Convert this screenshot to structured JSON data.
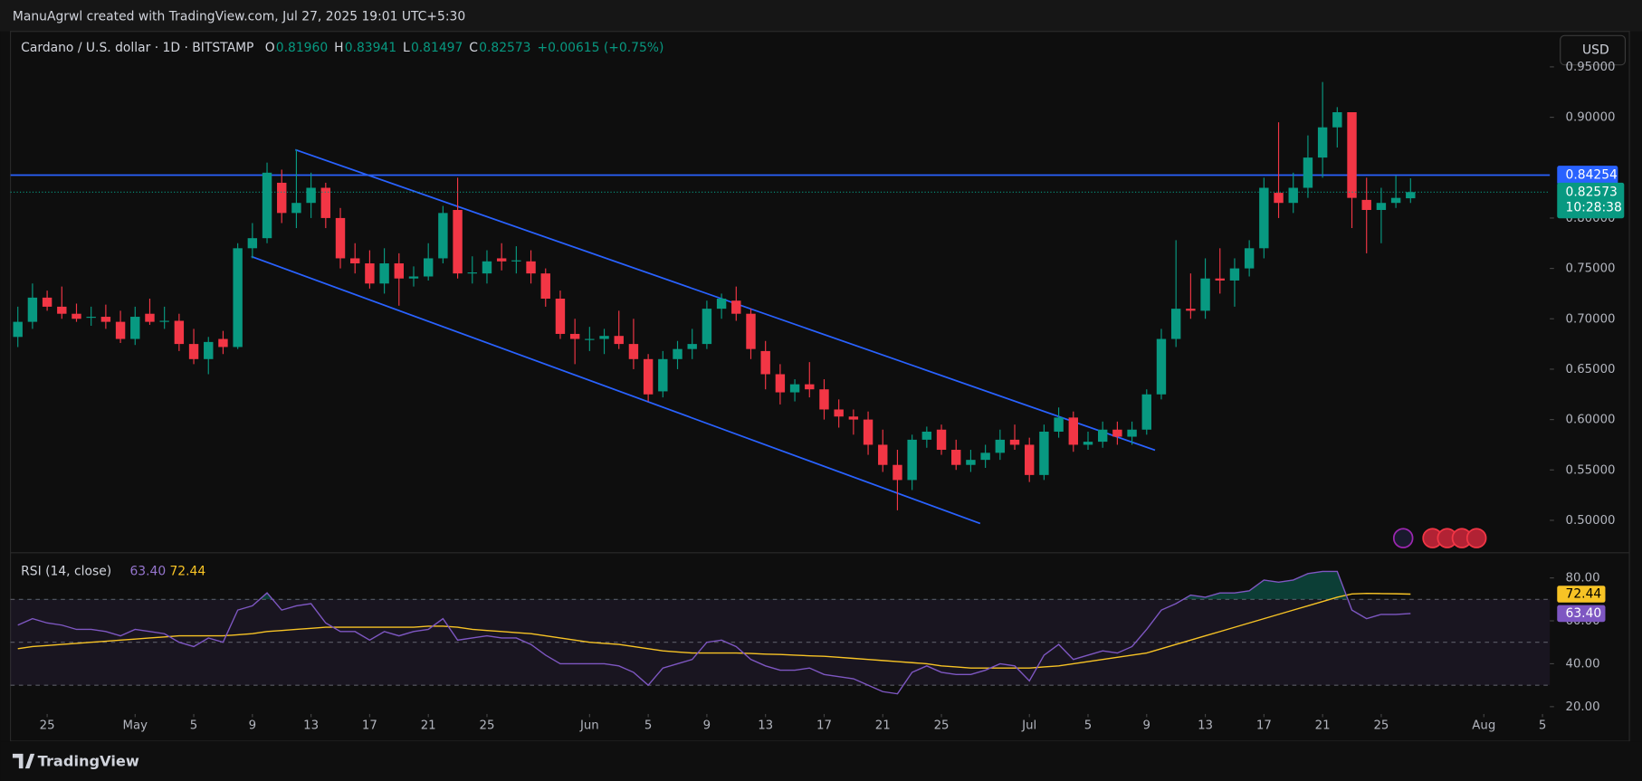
{
  "header": {
    "credit": "ManuAgrwl created with TradingView.com, Jul 27, 2025 19:01 UTC+5:30",
    "currency": "USD",
    "brand": "TradingView"
  },
  "chart_data": [
    {
      "type": "candlestick",
      "title": "Cardano / U.S. dollar · 1D · BITSTAMP",
      "legend": [
        {
          "label": "O",
          "value": "0.81960"
        },
        {
          "label": "H",
          "value": "0.83941"
        },
        {
          "label": "L",
          "value": "0.81497"
        },
        {
          "label": "C",
          "value": "0.82573"
        }
      ],
      "change": "+0.00615 (+0.75%)",
      "up_color": "#089981",
      "down_color": "#f23645",
      "xlim": [
        -0.5,
        104.5
      ],
      "xticks": [
        {
          "value": 2,
          "label": "25"
        },
        {
          "value": 8,
          "label": "May"
        },
        {
          "value": 12,
          "label": "5"
        },
        {
          "value": 16,
          "label": "9"
        },
        {
          "value": 20,
          "label": "13"
        },
        {
          "value": 24,
          "label": "17"
        },
        {
          "value": 28,
          "label": "21"
        },
        {
          "value": 32,
          "label": "25"
        },
        {
          "value": 39,
          "label": "Jun"
        },
        {
          "value": 43,
          "label": "5"
        },
        {
          "value": 47,
          "label": "9"
        },
        {
          "value": 51,
          "label": "13"
        },
        {
          "value": 55,
          "label": "17"
        },
        {
          "value": 59,
          "label": "21"
        },
        {
          "value": 63,
          "label": "25"
        },
        {
          "value": 69,
          "label": "Jul"
        },
        {
          "value": 73,
          "label": "5"
        },
        {
          "value": 77,
          "label": "9"
        },
        {
          "value": 81,
          "label": "13"
        },
        {
          "value": 85,
          "label": "17"
        },
        {
          "value": 89,
          "label": "21"
        },
        {
          "value": 93,
          "label": "25"
        },
        {
          "value": 100,
          "label": "Aug"
        },
        {
          "value": 104,
          "label": "5"
        }
      ],
      "ylim": [
        0.4678,
        0.9852
      ],
      "yticks": [
        {
          "value": 0.95,
          "label": "0.95000"
        },
        {
          "value": 0.9,
          "label": "0.90000"
        },
        {
          "value": 0.8,
          "label": "0.80000"
        },
        {
          "value": 0.75,
          "label": "0.75000"
        },
        {
          "value": 0.7,
          "label": "0.70000"
        },
        {
          "value": 0.65,
          "label": "0.65000"
        },
        {
          "value": 0.6,
          "label": "0.60000"
        },
        {
          "value": 0.55,
          "label": "0.55000"
        },
        {
          "value": 0.5,
          "label": "0.50000"
        }
      ],
      "price_line": {
        "value": 0.84254,
        "label": "0.84254",
        "color": "#2962ff"
      },
      "last_price": {
        "label": "0.82573",
        "countdown": "10:28:38"
      },
      "ohlc": [
        [
          0.682,
          0.712,
          0.672,
          0.697
        ],
        [
          0.697,
          0.735,
          0.69,
          0.721
        ],
        [
          0.721,
          0.728,
          0.708,
          0.712
        ],
        [
          0.712,
          0.732,
          0.7,
          0.705
        ],
        [
          0.705,
          0.715,
          0.697,
          0.7
        ],
        [
          0.701,
          0.712,
          0.693,
          0.702
        ],
        [
          0.702,
          0.714,
          0.69,
          0.697
        ],
        [
          0.697,
          0.708,
          0.676,
          0.68
        ],
        [
          0.68,
          0.712,
          0.674,
          0.702
        ],
        [
          0.705,
          0.72,
          0.694,
          0.697
        ],
        [
          0.697,
          0.712,
          0.69,
          0.698
        ],
        [
          0.698,
          0.705,
          0.668,
          0.675
        ],
        [
          0.675,
          0.69,
          0.655,
          0.66
        ],
        [
          0.66,
          0.682,
          0.645,
          0.677
        ],
        [
          0.68,
          0.688,
          0.665,
          0.672
        ],
        [
          0.672,
          0.775,
          0.67,
          0.77
        ],
        [
          0.77,
          0.795,
          0.76,
          0.78
        ],
        [
          0.78,
          0.855,
          0.775,
          0.845
        ],
        [
          0.835,
          0.848,
          0.795,
          0.805
        ],
        [
          0.805,
          0.868,
          0.79,
          0.815
        ],
        [
          0.815,
          0.845,
          0.8,
          0.83
        ],
        [
          0.83,
          0.835,
          0.79,
          0.8
        ],
        [
          0.8,
          0.81,
          0.75,
          0.76
        ],
        [
          0.76,
          0.775,
          0.745,
          0.755
        ],
        [
          0.755,
          0.768,
          0.73,
          0.735
        ],
        [
          0.735,
          0.77,
          0.725,
          0.755
        ],
        [
          0.755,
          0.765,
          0.713,
          0.74
        ],
        [
          0.74,
          0.752,
          0.732,
          0.742
        ],
        [
          0.742,
          0.775,
          0.738,
          0.76
        ],
        [
          0.76,
          0.812,
          0.755,
          0.805
        ],
        [
          0.808,
          0.84,
          0.74,
          0.745
        ],
        [
          0.745,
          0.762,
          0.735,
          0.746
        ],
        [
          0.745,
          0.768,
          0.735,
          0.757
        ],
        [
          0.76,
          0.775,
          0.748,
          0.757
        ],
        [
          0.757,
          0.772,
          0.745,
          0.758
        ],
        [
          0.757,
          0.768,
          0.735,
          0.745
        ],
        [
          0.745,
          0.75,
          0.712,
          0.72
        ],
        [
          0.72,
          0.728,
          0.68,
          0.685
        ],
        [
          0.685,
          0.7,
          0.655,
          0.68
        ],
        [
          0.68,
          0.692,
          0.668,
          0.68
        ],
        [
          0.68,
          0.69,
          0.665,
          0.683
        ],
        [
          0.683,
          0.708,
          0.67,
          0.675
        ],
        [
          0.675,
          0.7,
          0.65,
          0.66
        ],
        [
          0.66,
          0.665,
          0.618,
          0.625
        ],
        [
          0.628,
          0.668,
          0.622,
          0.66
        ],
        [
          0.66,
          0.678,
          0.65,
          0.67
        ],
        [
          0.67,
          0.69,
          0.66,
          0.675
        ],
        [
          0.675,
          0.718,
          0.67,
          0.71
        ],
        [
          0.71,
          0.725,
          0.7,
          0.72
        ],
        [
          0.718,
          0.732,
          0.698,
          0.705
        ],
        [
          0.705,
          0.71,
          0.66,
          0.67
        ],
        [
          0.668,
          0.678,
          0.63,
          0.645
        ],
        [
          0.645,
          0.655,
          0.615,
          0.627
        ],
        [
          0.627,
          0.64,
          0.618,
          0.635
        ],
        [
          0.635,
          0.657,
          0.622,
          0.63
        ],
        [
          0.63,
          0.64,
          0.6,
          0.61
        ],
        [
          0.61,
          0.62,
          0.592,
          0.603
        ],
        [
          0.603,
          0.61,
          0.585,
          0.6
        ],
        [
          0.6,
          0.608,
          0.565,
          0.575
        ],
        [
          0.575,
          0.59,
          0.548,
          0.555
        ],
        [
          0.555,
          0.57,
          0.51,
          0.54
        ],
        [
          0.54,
          0.585,
          0.53,
          0.58
        ],
        [
          0.58,
          0.593,
          0.572,
          0.588
        ],
        [
          0.59,
          0.595,
          0.565,
          0.57
        ],
        [
          0.57,
          0.58,
          0.55,
          0.555
        ],
        [
          0.555,
          0.57,
          0.548,
          0.56
        ],
        [
          0.56,
          0.575,
          0.552,
          0.567
        ],
        [
          0.567,
          0.59,
          0.56,
          0.58
        ],
        [
          0.58,
          0.595,
          0.57,
          0.575
        ],
        [
          0.575,
          0.582,
          0.538,
          0.545
        ],
        [
          0.545,
          0.595,
          0.54,
          0.588
        ],
        [
          0.588,
          0.612,
          0.582,
          0.602
        ],
        [
          0.602,
          0.608,
          0.568,
          0.575
        ],
        [
          0.575,
          0.588,
          0.57,
          0.578
        ],
        [
          0.578,
          0.598,
          0.572,
          0.59
        ],
        [
          0.59,
          0.598,
          0.575,
          0.583
        ],
        [
          0.583,
          0.598,
          0.575,
          0.59
        ],
        [
          0.59,
          0.63,
          0.585,
          0.625
        ],
        [
          0.625,
          0.69,
          0.62,
          0.68
        ],
        [
          0.68,
          0.778,
          0.672,
          0.71
        ],
        [
          0.71,
          0.745,
          0.7,
          0.708
        ],
        [
          0.708,
          0.76,
          0.7,
          0.74
        ],
        [
          0.74,
          0.77,
          0.725,
          0.738
        ],
        [
          0.738,
          0.76,
          0.712,
          0.75
        ],
        [
          0.75,
          0.778,
          0.742,
          0.77
        ],
        [
          0.77,
          0.84,
          0.76,
          0.83
        ],
        [
          0.825,
          0.895,
          0.8,
          0.815
        ],
        [
          0.815,
          0.845,
          0.805,
          0.83
        ],
        [
          0.83,
          0.882,
          0.82,
          0.86
        ],
        [
          0.86,
          0.935,
          0.84,
          0.89
        ],
        [
          0.89,
          0.91,
          0.87,
          0.905
        ],
        [
          0.905,
          0.905,
          0.79,
          0.82
        ],
        [
          0.818,
          0.84,
          0.765,
          0.808
        ],
        [
          0.808,
          0.83,
          0.775,
          0.815
        ],
        [
          0.815,
          0.842,
          0.81,
          0.82
        ],
        [
          0.8196,
          0.83941,
          0.81497,
          0.82573
        ]
      ]
    },
    {
      "type": "line",
      "title": "RSI (14, close)",
      "legend_values": [
        "63.40",
        "72.44"
      ],
      "ylim": [
        17.56,
        90.73
      ],
      "yticks": [
        {
          "value": 80,
          "label": "80.00"
        },
        {
          "value": 60,
          "label": "60.00"
        },
        {
          "value": 40,
          "label": "40.00"
        },
        {
          "value": 20,
          "label": "20.00"
        }
      ],
      "bands": [
        70,
        50,
        30
      ],
      "series": [
        {
          "color": "#7e57c2",
          "values": [
            58,
            61,
            59,
            58,
            56,
            56,
            55,
            53,
            56,
            55,
            54,
            50,
            48,
            52,
            50,
            65,
            67,
            73,
            65,
            67,
            68,
            59,
            55,
            55,
            51,
            55,
            53,
            55,
            56,
            61,
            51,
            52,
            53,
            52,
            52,
            49,
            44,
            40,
            40,
            40,
            40,
            39,
            36,
            30,
            38,
            40,
            42,
            50,
            51,
            48,
            42,
            39,
            37,
            37,
            38,
            35,
            34,
            33,
            30,
            27,
            26,
            36,
            39,
            36,
            35,
            35,
            37,
            40,
            39,
            32,
            44,
            49,
            42,
            44,
            46,
            45,
            48,
            56,
            65,
            68,
            72,
            71,
            73,
            73,
            74,
            79,
            78,
            79,
            82,
            83,
            83,
            65,
            61,
            63,
            63,
            63.4
          ]
        },
        {
          "color": "#f7c325",
          "values": [
            47,
            48,
            48.5,
            49,
            49.5,
            50,
            50.5,
            51,
            51.5,
            52,
            52.5,
            53,
            53,
            53,
            53,
            53.5,
            54,
            55,
            55.5,
            56,
            56.5,
            57,
            57,
            57,
            57,
            57,
            57,
            57,
            57.5,
            57.5,
            57,
            56,
            55.5,
            55,
            54.5,
            54,
            53,
            52,
            51,
            50,
            49.5,
            49,
            48,
            47,
            46,
            45.5,
            45,
            45,
            45,
            45,
            44.8,
            44.5,
            44.3,
            44,
            43.7,
            43.5,
            43,
            42.5,
            42,
            41.5,
            41,
            40.5,
            40,
            39,
            38.5,
            38,
            38,
            38,
            38,
            38,
            38.5,
            39,
            40,
            41,
            42,
            43,
            44,
            45,
            47,
            49,
            51,
            53,
            55,
            57,
            59,
            61,
            63,
            65,
            67,
            69,
            71,
            72.5,
            72.8,
            72.7,
            72.6,
            72.44
          ]
        }
      ]
    }
  ]
}
